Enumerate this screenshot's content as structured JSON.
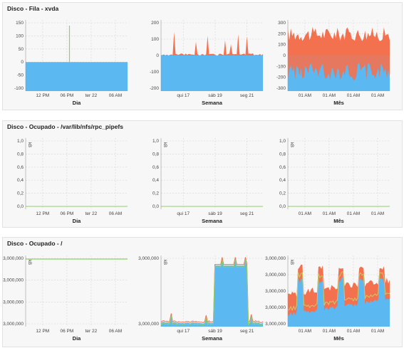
{
  "colors": {
    "blue": "#5cb8f0",
    "red": "#f4714f",
    "green": "#8fd06a",
    "grid": "#d6d6d6"
  },
  "sections": [
    {
      "title": "Disco - Fila - xvda",
      "charts": [
        {
          "xlabel": "Dia",
          "y_ticks": [
            "150",
            "100",
            "50",
            "0",
            "-50",
            "-100"
          ],
          "x_ticks": [
            "12 PM",
            "06 PM",
            "ter 22",
            "06 AM"
          ]
        },
        {
          "xlabel": "Semana",
          "y_ticks": [
            "200",
            "100",
            "0",
            "-100",
            "-200"
          ],
          "x_ticks": [
            "qui 17",
            "sáb 19",
            "seg 21"
          ]
        },
        {
          "xlabel": "Mês",
          "y_ticks": [
            "300",
            "200",
            "100",
            "0",
            "-100",
            "-200",
            "-300"
          ],
          "x_ticks": [
            "01 AM",
            "01 AM",
            "01 AM",
            "01 AM"
          ]
        }
      ]
    },
    {
      "title": "Disco - Ocupado - /var/lib/nfs/rpc_pipefs",
      "charts": [
        {
          "xlabel": "Dia",
          "unit": "kB",
          "y_ticks": [
            "1,0",
            "0,8",
            "0,6",
            "0,4",
            "0,2",
            "0,0"
          ],
          "x_ticks": [
            "12 PM",
            "06 PM",
            "ter 22",
            "06 AM"
          ]
        },
        {
          "xlabel": "Semana",
          "unit": "kB",
          "y_ticks": [
            "1,0",
            "0,8",
            "0,6",
            "0,4",
            "0,2",
            "0,0"
          ],
          "x_ticks": [
            "qui 17",
            "sáb 19",
            "seg 21"
          ]
        },
        {
          "xlabel": "Mês",
          "unit": "kB",
          "y_ticks": [
            "1,0",
            "0,8",
            "0,6",
            "0,4",
            "0,2",
            "0,0"
          ],
          "x_ticks": [
            "01 AM",
            "01 AM",
            "01 AM",
            "01 AM"
          ]
        }
      ]
    },
    {
      "title": "Disco - Ocupado - /",
      "charts": [
        {
          "xlabel": "Dia",
          "unit": "kB",
          "y_ticks": [
            "3,000,000",
            "3,000,000",
            "3,000,000",
            "3,000,000"
          ],
          "x_ticks": [
            "12 PM",
            "06 PM",
            "ter 22",
            "06 AM"
          ]
        },
        {
          "xlabel": "Semana",
          "unit": "kB",
          "y_ticks": [
            "3,000,000",
            "3,000,000"
          ],
          "x_ticks": [
            "qui 17",
            "sáb 19",
            "seg 21"
          ]
        },
        {
          "xlabel": "Mês",
          "unit": "kB",
          "y_ticks": [
            "3,000,000",
            "3,000,000",
            "3,000,000",
            "3,000,000",
            "3,000,000"
          ],
          "x_ticks": [
            "01 AM",
            "01 AM",
            "01 AM",
            "01 AM"
          ]
        }
      ]
    }
  ]
}
